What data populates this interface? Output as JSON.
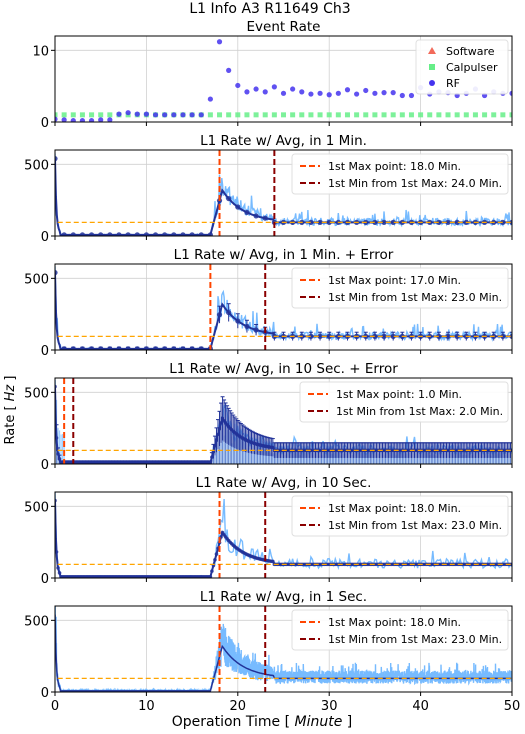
{
  "figure": {
    "suptitle_line1": "L1 Info A3 R11649 Ch3",
    "ylabel_prefix": "Rate [ ",
    "ylabel_unit": "Hz",
    "ylabel_suffix": " ]",
    "xlabel_prefix": "Operation Time [ ",
    "xlabel_unit": "Minute",
    "xlabel_suffix": " ]",
    "x_ticks": [
      0,
      10,
      20,
      30,
      40,
      50
    ]
  },
  "colors": {
    "software": "#f26a5a",
    "calpulser": "#66ee88",
    "rf": "#4433ee",
    "rate_light": "#77bbff",
    "avg_dark": "#223399",
    "threshold": "#ffa500",
    "max_line": "#ff4500",
    "min_line": "#8b0000",
    "grid": "#d0d0d0"
  },
  "chart_data": [
    {
      "type": "scatter",
      "title": "Event Rate",
      "ylim": [
        0,
        12
      ],
      "xlim": [
        0,
        50
      ],
      "yticks": [
        0,
        10
      ],
      "grid": true,
      "legend_position": "top-right",
      "series": [
        {
          "name": "Software",
          "marker": "triangle",
          "x": [],
          "y": []
        },
        {
          "name": "Calpulser",
          "marker": "square",
          "x": [
            0,
            1,
            2,
            3,
            4,
            5,
            6,
            7,
            8,
            9,
            10,
            11,
            12,
            13,
            14,
            15,
            16,
            17,
            18,
            19,
            20,
            21,
            22,
            23,
            24,
            25,
            26,
            27,
            28,
            29,
            30,
            31,
            32,
            33,
            34,
            35,
            36,
            37,
            38,
            39,
            40,
            41,
            42,
            43,
            44,
            45,
            46,
            47,
            48,
            49,
            50
          ],
          "y": [
            1,
            1,
            1,
            1,
            1,
            1,
            1,
            1,
            1,
            1,
            1,
            1,
            1,
            1,
            1,
            1,
            1,
            1,
            1,
            1,
            1,
            1,
            1,
            1,
            1,
            1,
            1,
            1,
            1,
            1,
            1,
            1,
            1,
            1,
            1,
            1,
            1,
            1,
            1,
            1,
            1,
            1,
            1,
            1,
            1,
            1,
            1,
            1,
            1,
            1,
            1
          ]
        },
        {
          "name": "RF",
          "marker": "circle",
          "x": [
            0,
            1,
            2,
            3,
            4,
            5,
            6,
            7,
            8,
            9,
            10,
            11,
            12,
            13,
            14,
            15,
            16,
            17,
            18,
            19,
            20,
            21,
            22,
            23,
            24,
            25,
            26,
            27,
            28,
            29,
            30,
            31,
            32,
            33,
            34,
            35,
            36,
            37,
            38,
            39,
            40,
            41,
            42,
            43,
            44,
            45,
            46,
            47,
            48,
            49,
            50
          ],
          "y": [
            0.4,
            0.3,
            0.2,
            0.2,
            0.2,
            0.3,
            0.3,
            1.1,
            1.3,
            1.1,
            1.1,
            1.0,
            1.0,
            1.0,
            1.0,
            1.0,
            1.0,
            3.2,
            11.2,
            7.2,
            5.1,
            4.2,
            4.6,
            4.2,
            4.9,
            4.0,
            4.6,
            4.2,
            3.9,
            4.0,
            3.8,
            4.0,
            4.5,
            3.9,
            4.4,
            4.0,
            4.1,
            4.1,
            3.7,
            3.7,
            4.8,
            3.9,
            4.2,
            4.1,
            3.7,
            4.0,
            4.6,
            3.7,
            4.2,
            4.0,
            4.0
          ]
        }
      ]
    },
    {
      "type": "line",
      "title": "L1 Rate w/ Avg, in 1 Min.",
      "ylim": [
        0,
        600
      ],
      "yticks": [
        0,
        500
      ],
      "xlim": [
        0,
        50
      ],
      "grid": true,
      "threshold": 95,
      "max_point": 18.0,
      "min_point": 24.0,
      "legend": [
        "1st Max point: 18.0 Min.",
        "1st Min from 1st Max: 24.0 Min."
      ],
      "legend_position": "top-right",
      "avg_markers": true,
      "error_bars": false,
      "resolution": "1min"
    },
    {
      "type": "line",
      "title": "L1 Rate w/ Avg, in 1 Min. + Error",
      "ylim": [
        0,
        600
      ],
      "yticks": [
        0,
        500
      ],
      "xlim": [
        0,
        50
      ],
      "grid": true,
      "threshold": 95,
      "max_point": 17.0,
      "min_point": 23.0,
      "legend": [
        "1st Max point: 17.0 Min.",
        "1st Min from 1st Max: 23.0 Min."
      ],
      "legend_position": "top-right",
      "avg_markers": true,
      "error_bars": true,
      "resolution": "1min"
    },
    {
      "type": "bar",
      "title": "L1 Rate w/ Avg, in 10 Sec. + Error",
      "ylim": [
        0,
        600
      ],
      "yticks": [
        0,
        500
      ],
      "xlim": [
        0,
        50
      ],
      "grid": true,
      "threshold": 95,
      "max_point": 1.0,
      "min_point": 2.0,
      "legend": [
        "1st Max point: 1.0 Min.",
        "1st Min from 1st Max: 2.0 Min."
      ],
      "legend_position": "top-right",
      "avg_markers": true,
      "error_bars": true,
      "resolution": "10sec"
    },
    {
      "type": "line",
      "title": "L1 Rate w/ Avg, in 10 Sec.",
      "ylim": [
        0,
        600
      ],
      "yticks": [
        0,
        500
      ],
      "xlim": [
        0,
        50
      ],
      "grid": true,
      "threshold": 95,
      "max_point": 18.0,
      "min_point": 23.0,
      "legend": [
        "1st Max point: 18.0 Min.",
        "1st Min from 1st Max: 23.0 Min."
      ],
      "legend_position": "top-right",
      "avg_markers": true,
      "error_bars": false,
      "resolution": "10sec"
    },
    {
      "type": "line",
      "title": "L1 Rate w/ Avg, in 1 Sec.",
      "ylim": [
        0,
        600
      ],
      "yticks": [
        0,
        500
      ],
      "xlim": [
        0,
        50
      ],
      "grid": true,
      "threshold": 95,
      "max_point": 18.0,
      "min_point": 23.0,
      "legend": [
        "1st Max point: 18.0 Min.",
        "1st Min from 1st Max: 23.0 Min."
      ],
      "legend_position": "top-right",
      "avg_markers": false,
      "error_bars": false,
      "resolution": "1sec"
    }
  ]
}
